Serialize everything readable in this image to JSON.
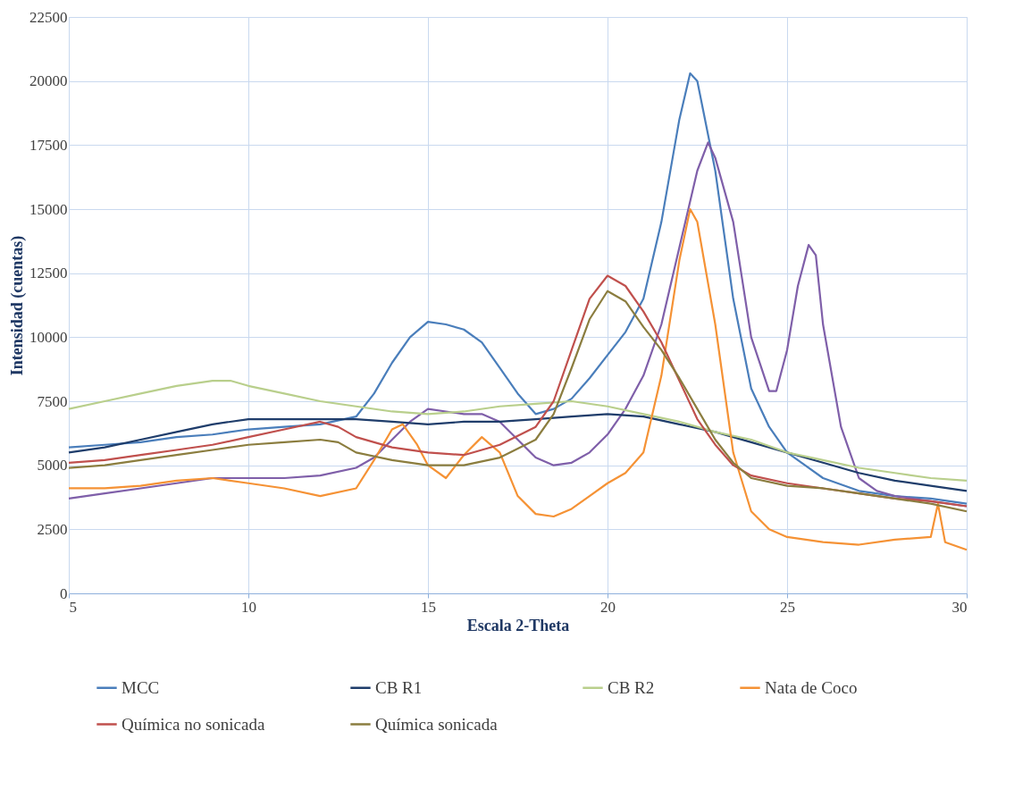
{
  "chart_data": {
    "type": "line",
    "xlabel": "Escala 2-Theta",
    "ylabel": "Intensidad (cuentas)",
    "xlim": [
      5,
      30
    ],
    "xticks": [
      5,
      10,
      15,
      20,
      25,
      30
    ],
    "ylim": [
      0,
      22500
    ],
    "yticks": [
      0,
      2500,
      5000,
      7500,
      10000,
      12500,
      15000,
      17500,
      20000,
      22500
    ],
    "grid": true,
    "legend": "bottom",
    "marker": "none",
    "line_style": "solid",
    "series": [
      {
        "name": "MCC",
        "color": "#4a7ebb",
        "x": [
          5,
          6,
          7,
          8,
          9,
          10,
          11,
          12,
          13,
          13.5,
          14,
          14.5,
          15,
          15.5,
          16,
          16.5,
          17,
          17.5,
          18,
          18.5,
          19,
          19.5,
          20,
          20.5,
          21,
          21.5,
          22,
          22.3,
          22.5,
          23,
          23.5,
          24,
          24.5,
          25,
          25.5,
          26,
          27,
          28,
          29,
          30
        ],
        "values": [
          5700,
          5800,
          5900,
          6100,
          6200,
          6400,
          6500,
          6600,
          6900,
          7800,
          9000,
          10000,
          10600,
          10500,
          10300,
          9800,
          8800,
          7800,
          7000,
          7200,
          7600,
          8400,
          9300,
          10200,
          11500,
          14500,
          18500,
          20300,
          20000,
          16500,
          11500,
          8000,
          6500,
          5500,
          5000,
          4500,
          4000,
          3800,
          3700,
          3500
        ]
      },
      {
        "color": "#7f5fa9",
        "x": [
          5,
          6,
          7,
          8,
          9,
          10,
          11,
          12,
          13,
          13.5,
          14,
          14.5,
          15,
          15.5,
          16,
          16.5,
          17,
          17.5,
          18,
          18.5,
          19,
          19.5,
          20,
          20.5,
          21,
          21.5,
          22,
          22.5,
          22.8,
          23,
          23.5,
          24,
          24.5,
          24.7,
          25,
          25.3,
          25.6,
          25.8,
          26,
          26.5,
          27,
          27.5,
          28,
          29,
          30
        ],
        "values": [
          3700,
          3900,
          4100,
          4300,
          4500,
          4500,
          4500,
          4600,
          4900,
          5300,
          6000,
          6700,
          7200,
          7100,
          7000,
          7000,
          6700,
          6000,
          5300,
          5000,
          5100,
          5500,
          6200,
          7200,
          8500,
          10500,
          13500,
          16500,
          17600,
          17000,
          14500,
          10000,
          7900,
          7900,
          9500,
          12000,
          13600,
          13200,
          10500,
          6500,
          4500,
          4000,
          3800,
          3600,
          3400
        ]
      },
      {
        "name": "CB R1",
        "color": "#1f3d6b",
        "x": [
          5,
          6,
          7,
          8,
          9,
          10,
          11,
          12,
          13,
          14,
          15,
          16,
          17,
          18,
          19,
          20,
          21,
          22,
          23,
          24,
          25,
          26,
          27,
          28,
          29,
          30
        ],
        "values": [
          5500,
          5700,
          6000,
          6300,
          6600,
          6800,
          6800,
          6800,
          6800,
          6700,
          6600,
          6700,
          6700,
          6800,
          6900,
          7000,
          6900,
          6600,
          6300,
          5900,
          5500,
          5100,
          4700,
          4400,
          4200,
          4000
        ]
      },
      {
        "name": "CB R2",
        "color": "#b9cf8c",
        "x": [
          5,
          6,
          7,
          8,
          9,
          9.5,
          10,
          11,
          12,
          13,
          14,
          15,
          16,
          17,
          18,
          19,
          20,
          21,
          22,
          23,
          24,
          25,
          26,
          27,
          28,
          29,
          30
        ],
        "values": [
          7200,
          7500,
          7800,
          8100,
          8300,
          8300,
          8100,
          7800,
          7500,
          7300,
          7100,
          7000,
          7100,
          7300,
          7400,
          7500,
          7300,
          7000,
          6700,
          6300,
          6000,
          5500,
          5200,
          4900,
          4700,
          4500,
          4400
        ]
      },
      {
        "name": "Nata de Coco",
        "color": "#f59235",
        "x": [
          5,
          6,
          7,
          8,
          9,
          10,
          11,
          12,
          13,
          13.5,
          14,
          14.3,
          14.7,
          15,
          15.5,
          16,
          16.5,
          17,
          17.5,
          18,
          18.5,
          19,
          19.5,
          20,
          20.5,
          21,
          21.5,
          22,
          22.3,
          22.5,
          23,
          23.5,
          24,
          24.5,
          25,
          26,
          27,
          28,
          29,
          29.2,
          29.4,
          30
        ],
        "values": [
          4100,
          4100,
          4200,
          4400,
          4500,
          4300,
          4100,
          3800,
          4100,
          5200,
          6400,
          6600,
          5800,
          5000,
          4500,
          5400,
          6100,
          5500,
          3800,
          3100,
          3000,
          3300,
          3800,
          4300,
          4700,
          5500,
          8500,
          13000,
          15000,
          14500,
          10500,
          5500,
          3200,
          2500,
          2200,
          2000,
          1900,
          2100,
          2200,
          3500,
          2000,
          1700
        ]
      },
      {
        "name": "Química no sonicada",
        "color": "#c0504d",
        "x": [
          5,
          6,
          7,
          8,
          9,
          10,
          11,
          12,
          12.5,
          13,
          14,
          15,
          16,
          17,
          18,
          18.5,
          19,
          19.5,
          20,
          20.5,
          21,
          21.5,
          22,
          22.5,
          23,
          23.5,
          24,
          25,
          26,
          27,
          28,
          29,
          30
        ],
        "values": [
          5100,
          5200,
          5400,
          5600,
          5800,
          6100,
          6400,
          6700,
          6500,
          6100,
          5700,
          5500,
          5400,
          5800,
          6500,
          7500,
          9500,
          11500,
          12400,
          12000,
          11000,
          9800,
          8300,
          6800,
          5800,
          5000,
          4600,
          4300,
          4100,
          3900,
          3700,
          3600,
          3400
        ]
      },
      {
        "name": "Química sonicada",
        "color": "#8b7d3f",
        "x": [
          5,
          6,
          7,
          8,
          9,
          10,
          11,
          12,
          12.5,
          13,
          14,
          15,
          16,
          17,
          18,
          18.5,
          19,
          19.5,
          20,
          20.5,
          21,
          21.5,
          22,
          22.5,
          23,
          23.5,
          24,
          25,
          26,
          27,
          28,
          29,
          30
        ],
        "values": [
          4900,
          5000,
          5200,
          5400,
          5600,
          5800,
          5900,
          6000,
          5900,
          5500,
          5200,
          5000,
          5000,
          5300,
          6000,
          7000,
          8800,
          10700,
          11800,
          11400,
          10400,
          9500,
          8400,
          7200,
          6000,
          5100,
          4500,
          4200,
          4100,
          3900,
          3700,
          3500,
          3200
        ]
      }
    ]
  }
}
